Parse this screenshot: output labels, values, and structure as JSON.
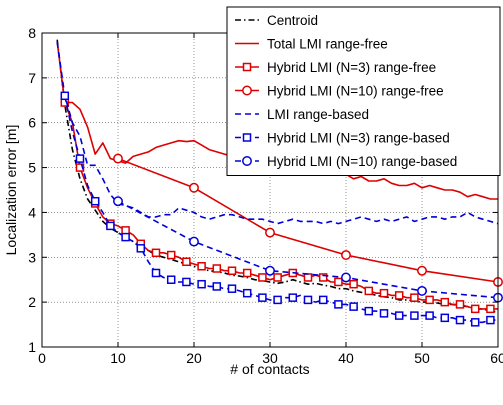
{
  "chart_data": {
    "type": "line",
    "title": "",
    "xlabel": "# of contacts",
    "ylabel": "Localization error [m]",
    "xlim": [
      0,
      60
    ],
    "ylim": [
      1,
      8
    ],
    "xticks": [
      0,
      10,
      20,
      30,
      40,
      50,
      60
    ],
    "yticks": [
      1,
      2,
      3,
      4,
      5,
      6,
      7,
      8
    ],
    "grid": true,
    "grid_style": "dotted",
    "legend_position": "top-right",
    "series": [
      {
        "name": "Centroid",
        "color": "#000000",
        "dash": "dash-dot",
        "marker": "none",
        "x": [
          2,
          3,
          4,
          5,
          6,
          7,
          8,
          9,
          10,
          11,
          12,
          13,
          14,
          15,
          16,
          17,
          18,
          19,
          20,
          21,
          22,
          23,
          24,
          25,
          26,
          27,
          28,
          29,
          30,
          31,
          32,
          33,
          34,
          35,
          36,
          37,
          38,
          39,
          40,
          41,
          42,
          43,
          44,
          45,
          46,
          47,
          48,
          49,
          50,
          51,
          52,
          53,
          54,
          55,
          56,
          57,
          58,
          59,
          60
        ],
        "values": [
          7.85,
          6.4,
          5.4,
          4.75,
          4.3,
          4.05,
          3.8,
          3.65,
          3.55,
          3.45,
          3.35,
          3.25,
          3.15,
          3.05,
          3.0,
          2.95,
          2.9,
          2.85,
          2.8,
          2.75,
          2.7,
          2.68,
          2.65,
          2.6,
          2.58,
          2.55,
          2.5,
          2.48,
          2.45,
          2.42,
          2.45,
          2.5,
          2.45,
          2.4,
          2.42,
          2.38,
          2.35,
          2.3,
          2.3,
          2.25,
          2.22,
          2.2,
          2.15,
          2.12,
          2.1,
          2.05,
          2.05,
          2.02,
          2.0,
          2.0,
          1.98,
          1.95,
          1.95,
          1.92,
          1.9,
          1.85,
          1.85,
          1.8,
          1.78
        ]
      },
      {
        "name": "Total LMI range-free",
        "color": "#dd0000",
        "dash": "solid",
        "marker": "none",
        "x": [
          2,
          3,
          4,
          5,
          6,
          7,
          8,
          9,
          10,
          11,
          12,
          13,
          14,
          15,
          16,
          17,
          18,
          19,
          20,
          21,
          22,
          23,
          24,
          25,
          26,
          27,
          28,
          29,
          30,
          31,
          32,
          33,
          34,
          35,
          36,
          37,
          38,
          39,
          40,
          41,
          42,
          43,
          44,
          45,
          46,
          47,
          48,
          49,
          50,
          51,
          52,
          53,
          54,
          55,
          56,
          57,
          58,
          59,
          60
        ],
        "values": [
          7.8,
          6.45,
          6.45,
          6.3,
          5.9,
          5.3,
          5.55,
          5.2,
          5.15,
          5.1,
          5.25,
          5.3,
          5.35,
          5.45,
          5.5,
          5.55,
          5.6,
          5.58,
          5.6,
          5.5,
          5.4,
          5.35,
          5.3,
          5.25,
          5.2,
          5.15,
          5.1,
          5.05,
          5.0,
          4.9,
          4.9,
          5.0,
          5.05,
          4.95,
          5.0,
          4.95,
          4.9,
          4.95,
          4.85,
          4.75,
          4.8,
          4.7,
          4.7,
          4.75,
          4.65,
          4.6,
          4.6,
          4.65,
          4.55,
          4.6,
          4.55,
          4.5,
          4.5,
          4.45,
          4.35,
          4.4,
          4.35,
          4.3,
          4.3
        ]
      },
      {
        "name": "Hybrid LMI (N=3) range-free",
        "color": "#dd0000",
        "dash": "solid",
        "marker": "square",
        "x": [
          3,
          4,
          5,
          6,
          7,
          8,
          9,
          10,
          11,
          12,
          13,
          14,
          15,
          16,
          17,
          18,
          19,
          20,
          21,
          22,
          23,
          24,
          25,
          26,
          27,
          28,
          29,
          30,
          31,
          32,
          33,
          34,
          35,
          36,
          37,
          38,
          39,
          40,
          41,
          42,
          43,
          44,
          45,
          46,
          47,
          48,
          49,
          50,
          51,
          52,
          53,
          54,
          55,
          56,
          57,
          58,
          59,
          60
        ],
        "values": [
          6.45,
          6.0,
          5.0,
          4.55,
          4.2,
          3.9,
          3.75,
          3.7,
          3.6,
          3.5,
          3.3,
          3.15,
          3.1,
          3.1,
          3.05,
          3.0,
          2.9,
          2.85,
          2.8,
          2.75,
          2.75,
          2.7,
          2.7,
          2.65,
          2.65,
          2.6,
          2.55,
          2.5,
          2.55,
          2.6,
          2.65,
          2.6,
          2.55,
          2.6,
          2.55,
          2.45,
          2.45,
          2.4,
          2.4,
          2.35,
          2.25,
          2.2,
          2.2,
          2.15,
          2.15,
          2.1,
          2.1,
          2.05,
          2.05,
          2.05,
          2.0,
          1.95,
          1.95,
          1.9,
          1.85,
          1.85,
          1.85,
          1.85
        ]
      },
      {
        "name": "Hybrid LMI (N=10) range-free",
        "color": "#dd0000",
        "dash": "solid",
        "marker": "circle",
        "x": [
          10,
          20,
          30,
          40,
          50,
          60
        ],
        "values": [
          5.2,
          4.55,
          3.55,
          3.05,
          2.7,
          2.45
        ]
      },
      {
        "name": "LMI range-based",
        "color": "#0000dd",
        "dash": "dashed",
        "marker": "none",
        "x": [
          2,
          3,
          4,
          5,
          6,
          7,
          8,
          9,
          10,
          11,
          12,
          13,
          14,
          15,
          16,
          17,
          18,
          19,
          20,
          21,
          22,
          23,
          24,
          25,
          26,
          27,
          28,
          29,
          30,
          31,
          32,
          33,
          34,
          35,
          36,
          37,
          38,
          39,
          40,
          41,
          42,
          43,
          44,
          45,
          46,
          47,
          48,
          49,
          50,
          51,
          52,
          53,
          54,
          55,
          56,
          57,
          58,
          59,
          60
        ],
        "values": [
          7.8,
          6.6,
          6.0,
          5.7,
          5.05,
          5.05,
          4.75,
          4.4,
          4.2,
          4.15,
          4.1,
          4.0,
          3.9,
          3.9,
          3.95,
          3.95,
          4.1,
          4.05,
          4.0,
          3.9,
          3.85,
          3.9,
          3.95,
          3.95,
          3.9,
          3.85,
          3.85,
          3.85,
          3.8,
          3.75,
          3.8,
          3.85,
          3.8,
          3.8,
          3.8,
          3.75,
          3.8,
          3.75,
          3.8,
          3.85,
          3.9,
          3.85,
          3.8,
          3.85,
          3.8,
          3.85,
          3.9,
          3.8,
          3.85,
          3.9,
          3.9,
          3.85,
          3.9,
          3.9,
          4.0,
          3.9,
          3.85,
          3.8,
          3.75
        ]
      },
      {
        "name": "Hybrid LMI (N=3) range-based",
        "color": "#0000dd",
        "dash": "dashed",
        "marker": "square",
        "x": [
          3,
          4,
          5,
          6,
          7,
          8,
          9,
          10,
          11,
          12,
          13,
          14,
          15,
          16,
          17,
          18,
          19,
          20,
          21,
          22,
          23,
          24,
          25,
          26,
          27,
          28,
          29,
          30,
          31,
          32,
          33,
          34,
          35,
          36,
          37,
          38,
          39,
          40,
          41,
          42,
          43,
          44,
          45,
          46,
          47,
          48,
          49,
          50,
          51,
          52,
          53,
          54,
          55,
          56,
          57,
          58,
          59,
          60
        ],
        "values": [
          6.6,
          5.8,
          5.2,
          4.6,
          4.25,
          4.0,
          3.7,
          3.55,
          3.45,
          3.35,
          3.2,
          2.9,
          2.65,
          2.55,
          2.5,
          2.45,
          2.45,
          2.4,
          2.4,
          2.35,
          2.35,
          2.3,
          2.3,
          2.25,
          2.2,
          2.15,
          2.1,
          2.05,
          2.05,
          2.1,
          2.1,
          2.15,
          2.05,
          2.0,
          2.05,
          2.0,
          1.95,
          1.95,
          1.9,
          1.85,
          1.8,
          1.8,
          1.75,
          1.75,
          1.7,
          1.7,
          1.7,
          1.7,
          1.7,
          1.65,
          1.65,
          1.65,
          1.6,
          1.6,
          1.55,
          1.55,
          1.6,
          1.6
        ]
      },
      {
        "name": "Hybrid LMI (N=10) range-based",
        "color": "#0000dd",
        "dash": "dashed",
        "marker": "circle",
        "x": [
          10,
          20,
          30,
          40,
          50,
          60
        ],
        "values": [
          4.25,
          3.35,
          2.7,
          2.55,
          2.25,
          2.1
        ]
      }
    ]
  }
}
